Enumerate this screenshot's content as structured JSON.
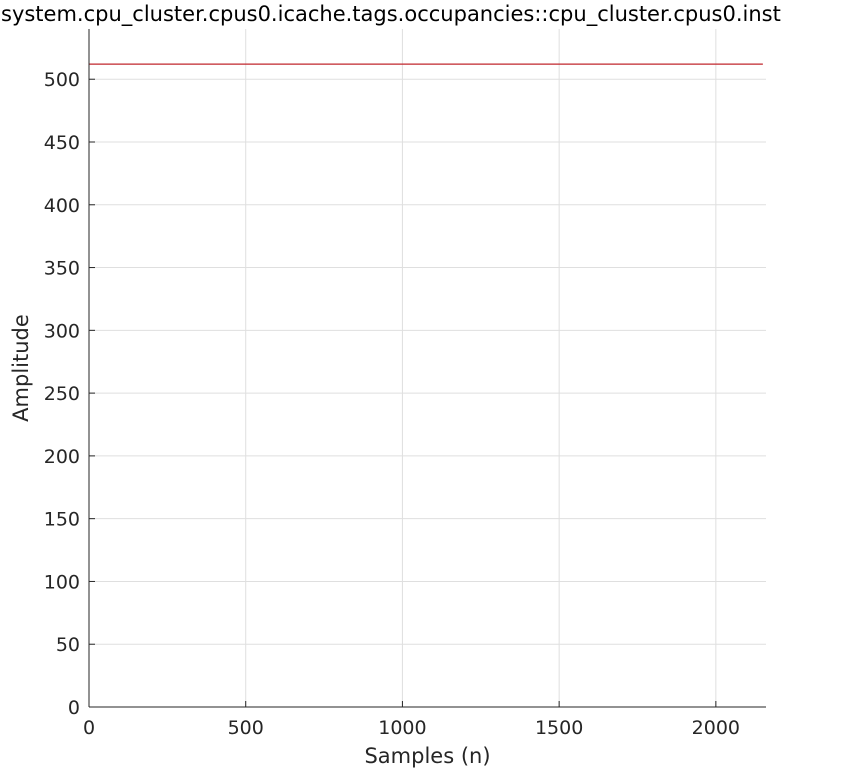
{
  "chart_data": {
    "type": "line",
    "title": "system.cpu_cluster.cpus0.icache.tags.occupancies::cpu_cluster.cpus0.inst",
    "xlabel": "Samples (n)",
    "ylabel": "Amplitude",
    "xlim": [
      0,
      2160
    ],
    "ylim": [
      0,
      540
    ],
    "xticks": [
      0,
      500,
      1000,
      1500,
      2000
    ],
    "yticks": [
      0,
      50,
      100,
      150,
      200,
      250,
      300,
      350,
      400,
      450,
      500
    ],
    "grid": true,
    "series": [
      {
        "color": "#c1272d",
        "x": [
          0,
          2150
        ],
        "y": [
          512,
          512
        ]
      }
    ]
  }
}
